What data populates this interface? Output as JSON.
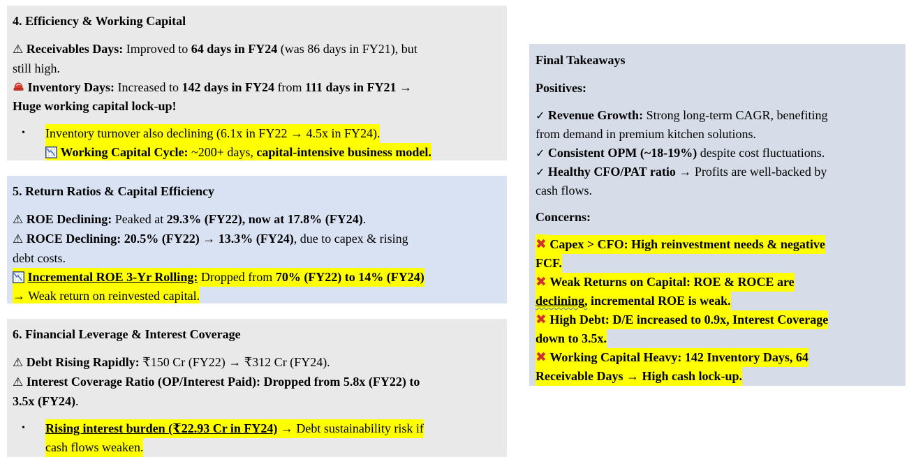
{
  "colors": {
    "box_gray": "#e9e9e9",
    "box_blue": "#d9e2f3",
    "box_takeaways": "#d6dde8",
    "highlight": "#ffff00",
    "cross_red": "#cd342b",
    "siren_red": "#e23b2c",
    "chart_line_blue": "#3a6bc0",
    "chart_border_blue": "#1f3864"
  },
  "sections": [
    {
      "name": "efficiency-working-capital",
      "variant": "gray",
      "paragraphs": [
        {
          "type": "title",
          "runs": [
            {
              "text": "4. Efficiency & Working Capital",
              "bold": true
            }
          ]
        },
        {
          "type": "body",
          "runs": [
            {
              "icon": "warning"
            },
            {
              "text": " "
            },
            {
              "text": "Receivables Days:",
              "bold": true
            },
            {
              "text": " Improved to "
            },
            {
              "text": "64 days in FY24",
              "bold": true
            },
            {
              "text": " (was 86 days in FY21), but"
            },
            {
              "br": true
            },
            {
              "text": "still high."
            },
            {
              "br": true
            },
            {
              "icon": "siren"
            },
            {
              "text": " "
            },
            {
              "text": "Inventory Days:",
              "bold": true
            },
            {
              "text": " Increased to "
            },
            {
              "text": "142 days in FY24",
              "bold": true
            },
            {
              "text": " from "
            },
            {
              "text": "111 days in FY21 →",
              "bold": true
            },
            {
              "br": true
            },
            {
              "text": "Huge working capital lock-up!",
              "bold": true
            }
          ]
        },
        {
          "type": "bullet",
          "marker": "•",
          "runs": [
            {
              "text": "Inventory turnover also declining (6.1x in FY22 → 4.5x in FY24).",
              "highlight": true
            },
            {
              "br": true
            },
            {
              "icon": "chartdown",
              "highlight": true
            },
            {
              "text": " ",
              "highlight": true
            },
            {
              "text": "Working Capital Cycle:",
              "bold": true,
              "highlight": true
            },
            {
              "text": " ~200+ days, ",
              "highlight": true
            },
            {
              "text": "capital-intensive business model.",
              "bold": true,
              "highlight": true
            }
          ]
        }
      ]
    },
    {
      "name": "return-ratios-capital-efficiency",
      "variant": "blue",
      "paragraphs": [
        {
          "type": "title",
          "runs": [
            {
              "text": "5. Return Ratios & Capital Efficiency",
              "bold": true
            }
          ]
        },
        {
          "type": "body",
          "runs": [
            {
              "icon": "warning"
            },
            {
              "text": " "
            },
            {
              "text": "ROE Declining:",
              "bold": true
            },
            {
              "text": " Peaked at "
            },
            {
              "text": "29.3% (FY22), now at 17.8% (FY24)",
              "bold": true
            },
            {
              "text": "."
            },
            {
              "br": true
            },
            {
              "icon": "warning"
            },
            {
              "text": " "
            },
            {
              "text": "ROCE Declining: 20.5% (FY22) → 13.3% (FY24)",
              "bold": true
            },
            {
              "text": ", due to capex & rising"
            },
            {
              "br": true
            },
            {
              "text": "debt costs."
            },
            {
              "br": true
            },
            {
              "icon": "chartdown",
              "highlight": true
            },
            {
              "text": " ",
              "highlight": true
            },
            {
              "text": "Incremental ROE 3-Yr Rolling:",
              "bold": true,
              "underline": true,
              "highlight": true
            },
            {
              "text": " Dropped from ",
              "highlight": true
            },
            {
              "text": "70% (FY22) to 14% (FY24)",
              "bold": true,
              "highlight": true
            },
            {
              "br": true
            },
            {
              "text": "→ Weak return on reinvested capital.",
              "highlight": true
            }
          ]
        }
      ]
    },
    {
      "name": "financial-leverage-interest-coverage",
      "variant": "gray",
      "paragraphs": [
        {
          "type": "title",
          "runs": [
            {
              "text": "6. Financial Leverage & Interest Coverage",
              "bold": true
            }
          ]
        },
        {
          "type": "body",
          "runs": [
            {
              "icon": "warning"
            },
            {
              "text": " "
            },
            {
              "text": "Debt Rising Rapidly:",
              "bold": true
            },
            {
              "text": " ₹150 Cr (FY22) → ₹312 Cr (FY24)."
            },
            {
              "br": true
            },
            {
              "icon": "warning"
            },
            {
              "text": " "
            },
            {
              "text": "Interest Coverage Ratio (OP/Interest Paid): Dropped from 5.8x (FY22) to",
              "bold": true
            },
            {
              "br": true
            },
            {
              "text": "3.5x (FY24)",
              "bold": true
            },
            {
              "text": "."
            }
          ]
        },
        {
          "type": "bullet",
          "marker": "•",
          "runs": [
            {
              "text": "Rising interest burden (₹22.93 Cr in FY24)",
              "bold": true,
              "underline": true,
              "highlight": true
            },
            {
              "text": " → Debt sustainability risk if",
              "highlight": true
            },
            {
              "br": true
            },
            {
              "text": "cash flows weaken.",
              "highlight": true
            }
          ]
        }
      ]
    },
    {
      "name": "final-takeaways",
      "variant": "takeaways",
      "paragraphs": [
        {
          "type": "title",
          "runs": [
            {
              "text": "Final Takeaways",
              "bold": true
            }
          ]
        },
        {
          "type": "sub",
          "runs": [
            {
              "text": "Positives:",
              "bold": true
            }
          ]
        },
        {
          "type": "body",
          "runs": [
            {
              "icon": "check"
            },
            {
              "text": " "
            },
            {
              "text": "Revenue Growth:",
              "bold": true
            },
            {
              "text": " Strong long-term CAGR, benefiting"
            },
            {
              "br": true
            },
            {
              "text": "from demand in premium kitchen solutions."
            },
            {
              "br": true
            },
            {
              "icon": "check"
            },
            {
              "text": " "
            },
            {
              "text": "Consistent OPM (~18-19%)",
              "bold": true
            },
            {
              "text": " despite cost fluctuations."
            },
            {
              "br": true
            },
            {
              "icon": "check"
            },
            {
              "text": " "
            },
            {
              "text": "Healthy CFO/PAT ratio",
              "bold": true
            },
            {
              "text": " → Profits are well-backed by"
            },
            {
              "br": true
            },
            {
              "text": "cash flows."
            }
          ]
        },
        {
          "type": "sub",
          "runs": [
            {
              "text": "Concerns:",
              "bold": true
            }
          ]
        },
        {
          "type": "body",
          "runs": [
            {
              "icon": "cross",
              "highlight": true
            },
            {
              "text": " ",
              "highlight": true
            },
            {
              "text": "Capex > CFO: High reinvestment needs & negative",
              "bold": true,
              "highlight": true
            },
            {
              "br": true
            },
            {
              "text": "FCF.",
              "bold": true,
              "highlight": true
            },
            {
              "br": true
            },
            {
              "icon": "cross",
              "highlight": true
            },
            {
              "text": " ",
              "highlight": true
            },
            {
              "text": "Weak Returns on Capital: ROE & ROCE are",
              "bold": true,
              "highlight": true
            },
            {
              "br": true
            },
            {
              "text": "declining,",
              "bold": true,
              "underline": true,
              "wavy": true,
              "highlight": true
            },
            {
              "text": " incremental ROE is weak.",
              "bold": true,
              "highlight": true
            },
            {
              "br": true
            },
            {
              "icon": "cross",
              "highlight": true
            },
            {
              "text": " ",
              "highlight": true
            },
            {
              "text": "High Debt: D/E increased to 0.9x, Interest Coverage",
              "bold": true,
              "highlight": true
            },
            {
              "br": true
            },
            {
              "text": "down to 3.5x.",
              "bold": true,
              "highlight": true
            },
            {
              "br": true
            },
            {
              "icon": "cross",
              "highlight": true
            },
            {
              "text": " ",
              "highlight": true
            },
            {
              "text": "Working Capital Heavy: 142 Inventory Days, 64",
              "bold": true,
              "highlight": true
            },
            {
              "br": true
            },
            {
              "text": "Receivable Days → High cash lock-up.",
              "bold": true,
              "highlight": true
            }
          ]
        }
      ]
    }
  ]
}
